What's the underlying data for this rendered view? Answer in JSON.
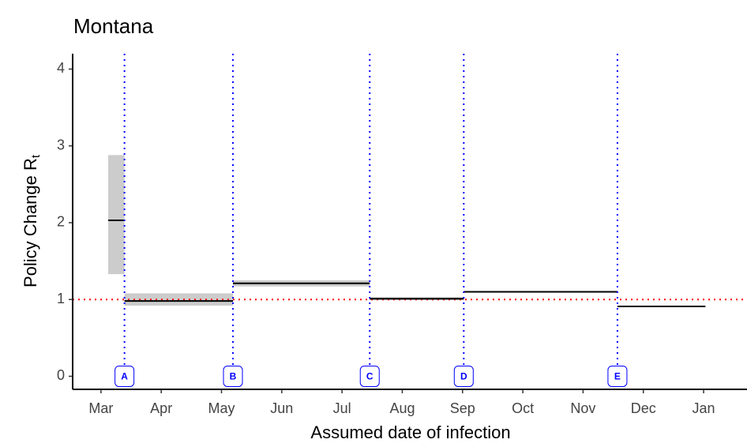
{
  "chart_data": {
    "type": "step_interval",
    "title": "Montana",
    "xlabel": "Assumed date of infection",
    "ylabel": {
      "text": "Policy Change R",
      "subscript": "t"
    },
    "xlim": [
      -0.47,
      10.72
    ],
    "ylim": [
      -0.17,
      4.2
    ],
    "xticks": [
      {
        "value": 0,
        "label": "Mar"
      },
      {
        "value": 1,
        "label": "Apr"
      },
      {
        "value": 2,
        "label": "May"
      },
      {
        "value": 3,
        "label": "Jun"
      },
      {
        "value": 4,
        "label": "Jul"
      },
      {
        "value": 5,
        "label": "Aug"
      },
      {
        "value": 6,
        "label": "Sep"
      },
      {
        "value": 7,
        "label": "Oct"
      },
      {
        "value": 8,
        "label": "Nov"
      },
      {
        "value": 9,
        "label": "Dec"
      },
      {
        "value": 10,
        "label": "Jan"
      }
    ],
    "yticks": [
      0,
      1,
      2,
      3,
      4
    ],
    "segments": [
      {
        "start": 0.12,
        "end": 0.39,
        "value": 2.03,
        "lower": 1.33,
        "upper": 2.88
      },
      {
        "start": 0.39,
        "end": 2.19,
        "value": 0.98,
        "lower": 0.92,
        "upper": 1.08
      },
      {
        "start": 2.19,
        "end": 4.46,
        "value": 1.21,
        "lower": 1.17,
        "upper": 1.25
      },
      {
        "start": 4.46,
        "end": 6.02,
        "value": 1.01,
        "lower": 0.99,
        "upper": 1.03
      },
      {
        "start": 6.02,
        "end": 8.57,
        "value": 1.1,
        "lower": 1.09,
        "upper": 1.11
      },
      {
        "start": 8.57,
        "end": 10.03,
        "value": 0.91,
        "lower": 0.9,
        "upper": 0.92
      }
    ],
    "line_color": "#000000",
    "band_color": "#cccccc",
    "reference_line": 1,
    "reference_color": "#ff0000",
    "policy_color": "#0000ff",
    "policies": [
      {
        "label": "A",
        "x": 0.39
      },
      {
        "label": "B",
        "x": 2.19
      },
      {
        "label": "C",
        "x": 4.46
      },
      {
        "label": "D",
        "x": 6.02
      },
      {
        "label": "E",
        "x": 8.57
      }
    ]
  }
}
